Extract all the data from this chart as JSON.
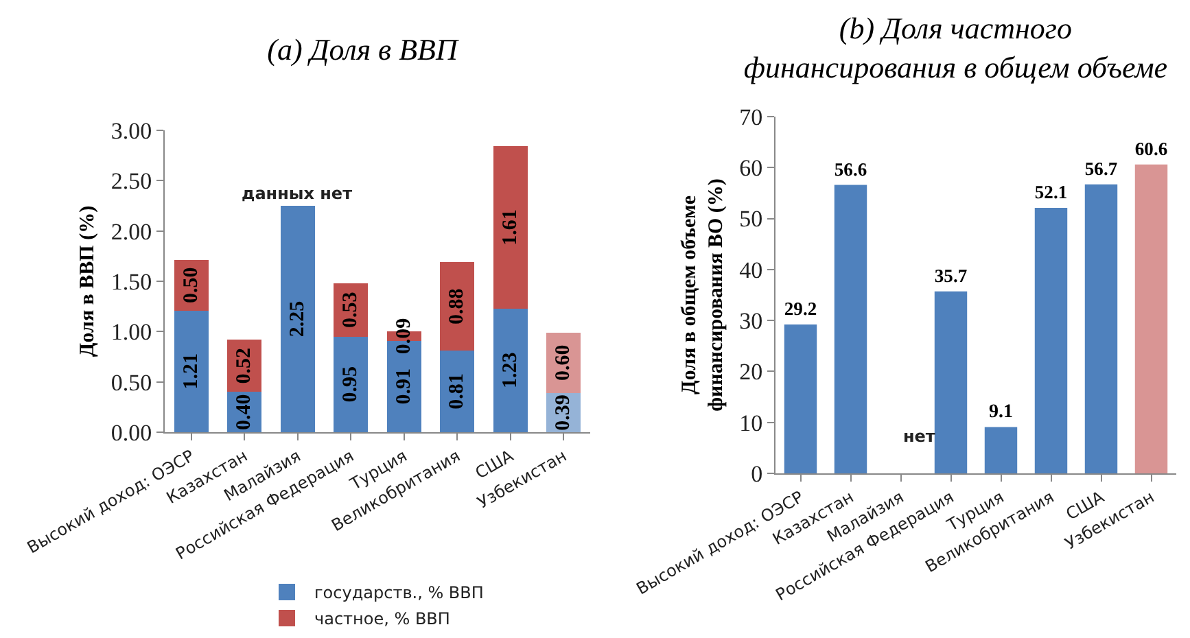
{
  "chart_data": [
    {
      "type": "bar",
      "title": "(a) Доля в ВВП",
      "ylabel": "Доля в ВВП (%)",
      "stacked": true,
      "legend": "bottom",
      "categories": [
        "Высокий доход: ОЭСР",
        "Казахстан",
        "Малайзия",
        "Российская Федерация",
        "Турция",
        "Великобритания",
        "США",
        "Узбекистан"
      ],
      "series": [
        {
          "name": "государств., % ВВП",
          "color": "#4f81bd",
          "colors": [
            "#4f81bd",
            "#4f81bd",
            "#4f81bd",
            "#4f81bd",
            "#4f81bd",
            "#4f81bd",
            "#4f81bd",
            "#95b3d7"
          ],
          "values": [
            1.21,
            0.4,
            2.25,
            0.95,
            0.91,
            0.81,
            1.23,
            0.39
          ],
          "value_labels": [
            "1.21",
            "0.40",
            "2.25",
            "0.95",
            "0.91",
            "0.81",
            "1.23",
            "0.39"
          ]
        },
        {
          "name": "частное, % ВВП",
          "color": "#c0504d",
          "colors": [
            "#c0504d",
            "#c0504d",
            "#c0504d",
            "#c0504d",
            "#c0504d",
            "#c0504d",
            "#c0504d",
            "#d99594"
          ],
          "values": [
            0.5,
            0.52,
            null,
            0.53,
            0.09,
            0.88,
            1.61,
            0.6
          ],
          "value_labels": [
            "0.50",
            "0.52",
            null,
            "0.53",
            "0.09",
            "0.88",
            "1.61",
            "0.60"
          ]
        }
      ],
      "ylim": [
        0,
        3
      ],
      "yticks": [
        {
          "value": 0,
          "label": "0.00"
        },
        {
          "value": 0.5,
          "label": "0.50"
        },
        {
          "value": 1,
          "label": "1.00"
        },
        {
          "value": 1.5,
          "label": "1.50"
        },
        {
          "value": 2,
          "label": "2.00"
        },
        {
          "value": 2.5,
          "label": "2.50"
        },
        {
          "value": 3,
          "label": "3.00"
        }
      ],
      "annotations": [
        {
          "text": "данных нет",
          "x": "Малайзия",
          "y": 2.25
        }
      ]
    },
    {
      "type": "bar",
      "title": "(b) Доля частного финансирования в общем объеме",
      "ylabel": "Доля в общем объеме финансирования ВО (%)",
      "data_labels": true,
      "categories": [
        "Высокий доход: ОЭСР",
        "Казахстан",
        "Малайзия",
        "Российская Федерация",
        "Турция",
        "Великобритания",
        "США",
        "Узбекистан"
      ],
      "values": [
        29.2,
        56.6,
        null,
        35.7,
        9.1,
        52.1,
        56.7,
        60.6
      ],
      "colors": [
        "#4f81bd",
        "#4f81bd",
        "#4f81bd",
        "#4f81bd",
        "#4f81bd",
        "#4f81bd",
        "#4f81bd",
        "#d99594"
      ],
      "ylim": [
        0,
        70
      ],
      "yticks": [
        0,
        10,
        20,
        30,
        40,
        50,
        60,
        70
      ],
      "annotations": [
        "нет"
      ]
    }
  ]
}
